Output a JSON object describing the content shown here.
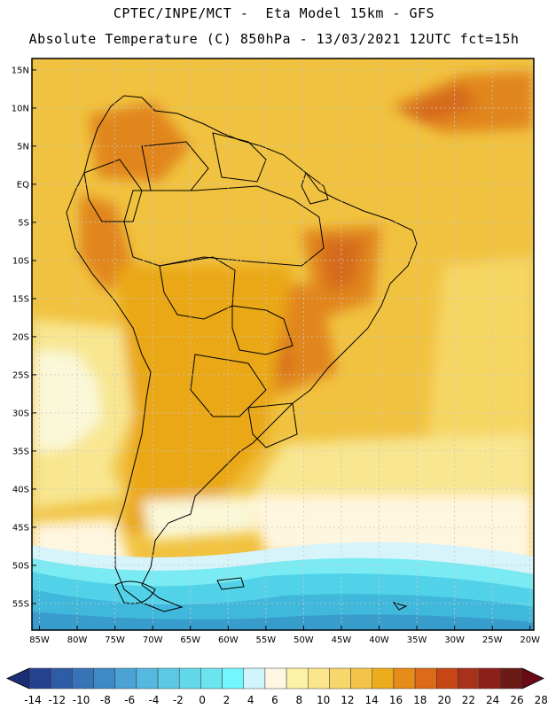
{
  "header": {
    "line1": "CPTEC/INPE/MCT -  Eta Model 15km - GFS",
    "line2": "Absolute Temperature (C) 850hPa - 13/03/2021 12UTC fct=15h"
  },
  "map": {
    "lat_labels": [
      "15N",
      "10N",
      "5N",
      "EQ",
      "5S",
      "10S",
      "15S",
      "20S",
      "25S",
      "30S",
      "35S",
      "40S",
      "45S",
      "50S",
      "55S"
    ],
    "lon_labels": [
      "85W",
      "80W",
      "75W",
      "70W",
      "65W",
      "60W",
      "55W",
      "50W",
      "45W",
      "40W",
      "35W",
      "30W",
      "25W",
      "20W"
    ],
    "colors": {
      "t10": "#faf8d8",
      "t12": "#f8e690",
      "t14": "#f6d664",
      "t16": "#f1c23f",
      "t18": "#eaa719",
      "t20": "#e1861d",
      "t22": "#d56a1f",
      "t6": "#fff6e0",
      "t4": "#d6f4fa",
      "t2": "#7aeaf3",
      "t0": "#52d2e8",
      "tm2": "#3fb8dc",
      "tm4": "#389ccc",
      "border": "#000000",
      "grid": "#c8c8c8"
    }
  },
  "colorbar": {
    "labels": [
      "-14",
      "-12",
      "-10",
      "-8",
      "-6",
      "-4",
      "-2",
      "0",
      "2",
      "4",
      "6",
      "8",
      "10",
      "12",
      "14",
      "16",
      "18",
      "20",
      "22",
      "24",
      "26",
      "28"
    ],
    "colors": [
      "#26418f",
      "#2f5ca6",
      "#3773b6",
      "#3d8bc6",
      "#4aa3d4",
      "#55b8de",
      "#5cc9e4",
      "#62d8ea",
      "#6ae5f0",
      "#74f6ff",
      "#d2f4fc",
      "#fff6e3",
      "#fcf2a5",
      "#fae58a",
      "#f7d66b",
      "#f3c447",
      "#ecac1c",
      "#e78b19",
      "#dc6a18",
      "#c64714",
      "#a7311a",
      "#8b201a",
      "#6b1a16"
    ],
    "left_arrow_color": "#1b2e75",
    "right_arrow_color": "#6b0a14"
  }
}
